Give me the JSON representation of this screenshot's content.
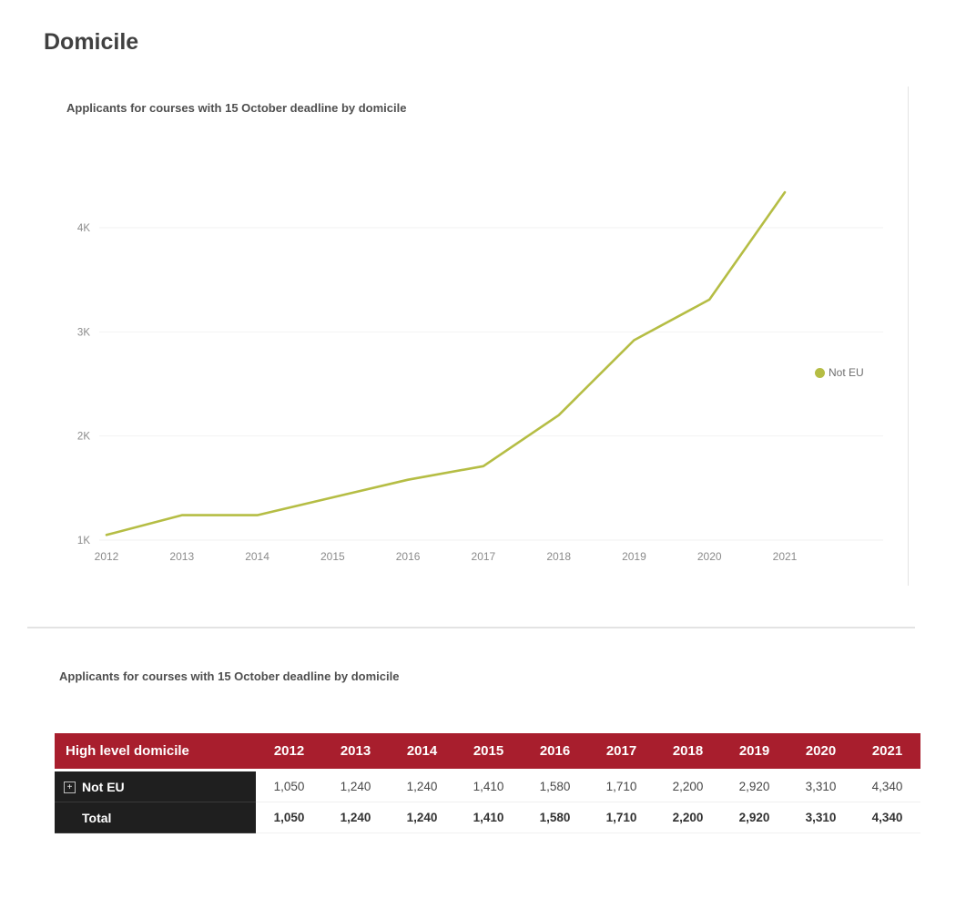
{
  "page": {
    "title": "Domicile"
  },
  "chart": {
    "title": "Applicants for courses with 15 October deadline by domicile",
    "legend_label": "Not EU"
  },
  "chart_data": {
    "type": "line",
    "title": "Applicants for courses with 15 October deadline by domicile",
    "x": [
      2012,
      2013,
      2014,
      2015,
      2016,
      2017,
      2018,
      2019,
      2020,
      2021
    ],
    "series": [
      {
        "name": "Not EU",
        "color": "#b5bd44",
        "values": [
          1050,
          1240,
          1240,
          1410,
          1580,
          1710,
          2200,
          2920,
          3310,
          4340
        ]
      }
    ],
    "xlabel": "",
    "ylabel": "",
    "ylim": [
      1000,
      4600
    ],
    "yticks": [
      {
        "value": 1000,
        "label": "1K"
      },
      {
        "value": 2000,
        "label": "2K"
      },
      {
        "value": 3000,
        "label": "3K"
      },
      {
        "value": 4000,
        "label": "4K"
      }
    ],
    "grid": true,
    "legend_position": "right"
  },
  "table_section": {
    "title": "Applicants for courses with 15 October deadline by domicile",
    "table": {
      "header": [
        "High level domicile",
        "2012",
        "2013",
        "2014",
        "2015",
        "2016",
        "2017",
        "2018",
        "2019",
        "2020",
        "2021"
      ],
      "rows": [
        {
          "label": "Not EU",
          "expandable": true,
          "bold": false,
          "values": [
            "1,050",
            "1,240",
            "1,240",
            "1,410",
            "1,580",
            "1,710",
            "2,200",
            "2,920",
            "3,310",
            "4,340"
          ]
        },
        {
          "label": "Total",
          "expandable": false,
          "bold": true,
          "values": [
            "1,050",
            "1,240",
            "1,240",
            "1,410",
            "1,580",
            "1,710",
            "2,200",
            "2,920",
            "3,310",
            "4,340"
          ]
        }
      ]
    }
  },
  "colors": {
    "line": "#b5bd44",
    "table_header_bg": "#a81e2d",
    "row_label_bg": "#1f1f1f",
    "divider": "#e3e3e3"
  }
}
